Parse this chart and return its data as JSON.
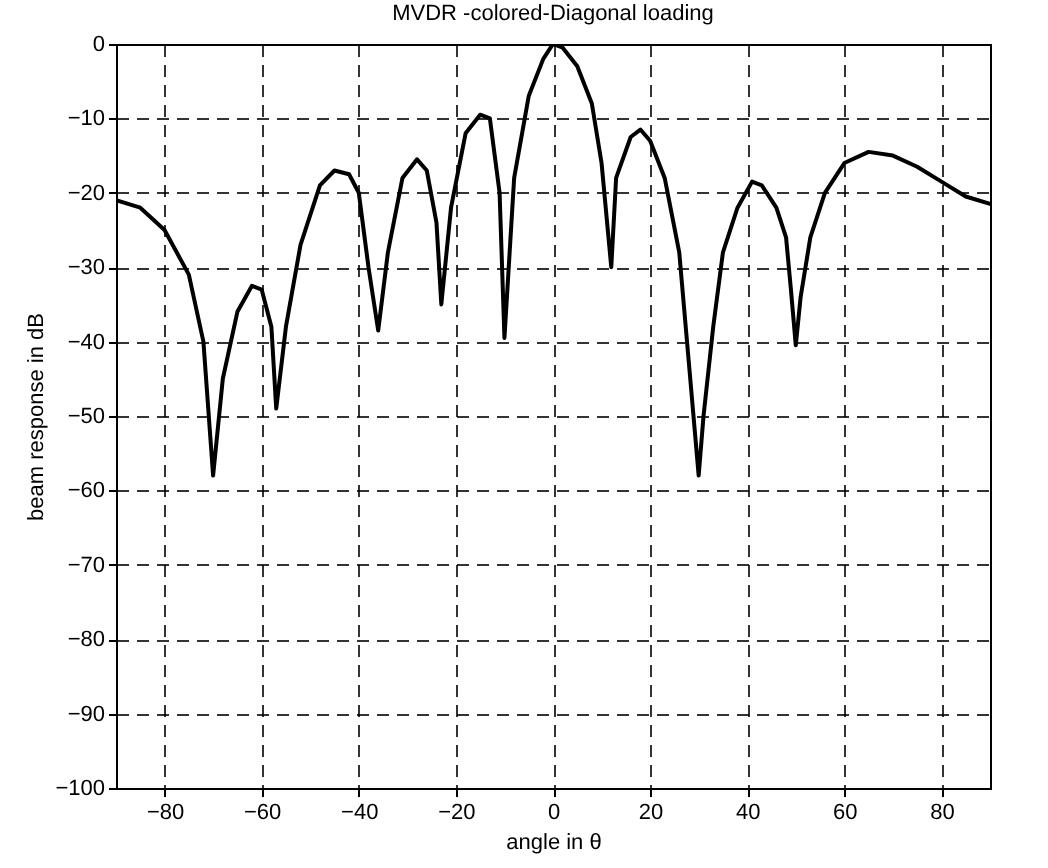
{
  "chart_data": {
    "type": "line",
    "title": "MVDR -colored-Diagonal loading",
    "xlabel": "angle in θ",
    "ylabel": "beam response in dB",
    "x": [
      -90,
      -85,
      -80,
      -75,
      -72,
      -70,
      -68,
      -65,
      -62,
      -60,
      -58,
      -57,
      -55,
      -52,
      -48,
      -45,
      -42,
      -40,
      -38,
      -36,
      -34,
      -31,
      -28,
      -26,
      -24,
      -23,
      -21,
      -18,
      -15,
      -13,
      -11,
      -10,
      -8,
      -5,
      -2,
      0,
      2,
      5,
      8,
      10,
      12,
      13,
      16,
      18,
      20,
      23,
      26,
      28,
      30,
      31,
      33,
      35,
      38,
      41,
      43,
      46,
      48,
      49,
      50,
      51,
      53,
      56,
      60,
      65,
      70,
      75,
      80,
      85,
      90
    ],
    "series": [
      {
        "color": "#000000",
        "values": [
          -21,
          -22,
          -25,
          -31,
          -40,
          -58,
          -45,
          -36,
          -32.5,
          -33,
          -38,
          -49,
          -38,
          -27,
          -19,
          -17,
          -17.5,
          -20,
          -30,
          -38.5,
          -28,
          -18,
          -15.5,
          -17,
          -24,
          -35,
          -22,
          -12,
          -9.5,
          -10,
          -20,
          -39.5,
          -18,
          -7,
          -2,
          0,
          -0.5,
          -3,
          -8,
          -16,
          -30,
          -18,
          -12.5,
          -11.5,
          -13,
          -18,
          -28,
          -43,
          -58,
          -50,
          -38,
          -28,
          -22,
          -18.5,
          -19,
          -22,
          -26,
          -33,
          -40.5,
          -34,
          -26,
          -20,
          -16,
          -14.5,
          -15,
          -16.5,
          -18.5,
          -20.5,
          -21.5
        ]
      }
    ],
    "xlim": [
      -90,
      90
    ],
    "xticks": [
      -80,
      -60,
      -40,
      -20,
      0,
      20,
      40,
      60,
      80
    ],
    "ylim": [
      -100,
      0
    ],
    "yticks": [
      0,
      -10,
      -20,
      -30,
      -40,
      -50,
      -60,
      -70,
      -80,
      -90,
      -100
    ],
    "grid": true,
    "line_style": "solid",
    "marker": "none"
  }
}
